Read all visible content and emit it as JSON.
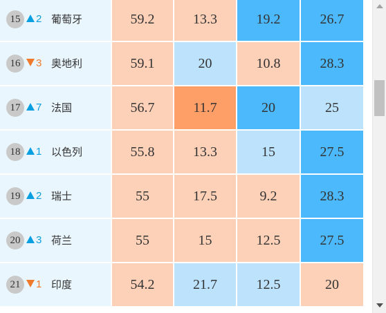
{
  "rows": [
    {
      "rank": "15",
      "change_dir": "up",
      "change": "2",
      "country": "葡萄牙",
      "values": [
        "59.2",
        "13.3",
        "19.2",
        "26.7"
      ],
      "levels": [
        "peach",
        "peach",
        "blue",
        "blue"
      ]
    },
    {
      "rank": "16",
      "change_dir": "down",
      "change": "3",
      "country": "奥地利",
      "values": [
        "59.1",
        "20",
        "10.8",
        "28.3"
      ],
      "levels": [
        "peach",
        "lightblue",
        "peach",
        "blue"
      ]
    },
    {
      "rank": "17",
      "change_dir": "up",
      "change": "7",
      "country": "法国",
      "values": [
        "56.7",
        "11.7",
        "20",
        "25"
      ],
      "levels": [
        "peach",
        "orange",
        "blue",
        "lightblue"
      ]
    },
    {
      "rank": "18",
      "change_dir": "up",
      "change": "1",
      "country": "以色列",
      "values": [
        "55.8",
        "13.3",
        "15",
        "27.5"
      ],
      "levels": [
        "peach",
        "peach",
        "lightblue",
        "blue"
      ]
    },
    {
      "rank": "19",
      "change_dir": "up",
      "change": "2",
      "country": "瑞士",
      "values": [
        "55",
        "17.5",
        "9.2",
        "28.3"
      ],
      "levels": [
        "peach",
        "peach",
        "peach",
        "blue"
      ]
    },
    {
      "rank": "20",
      "change_dir": "up",
      "change": "3",
      "country": "荷兰",
      "values": [
        "55",
        "15",
        "12.5",
        "27.5"
      ],
      "levels": [
        "peach",
        "peach",
        "peach",
        "blue"
      ]
    },
    {
      "rank": "21",
      "change_dir": "down",
      "change": "1",
      "country": "印度",
      "values": [
        "54.2",
        "21.7",
        "12.5",
        "20"
      ],
      "levels": [
        "peach",
        "lightblue",
        "lightblue",
        "peach"
      ]
    }
  ],
  "colors": {
    "peach": "#fdd0b8",
    "orange": "#ff9f68",
    "lightblue": "#bde3fc",
    "blue": "#4cb9fc",
    "rank_panel": "#eaf6fd",
    "up": "#0a9fe0",
    "down": "#f07a2c"
  },
  "icons": {
    "up": "triangle-up-icon",
    "down": "triangle-down-icon"
  }
}
